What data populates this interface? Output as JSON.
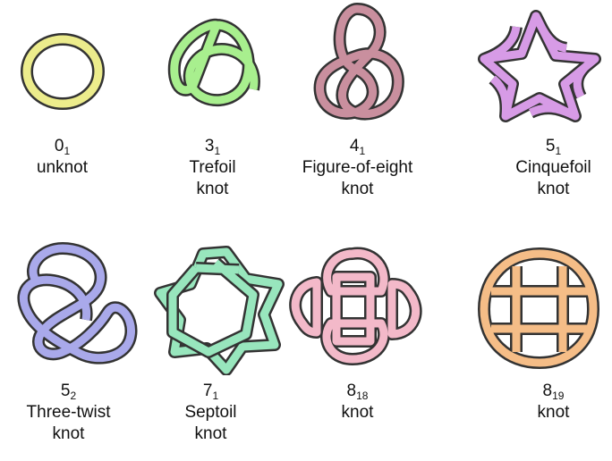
{
  "knots": [
    {
      "number": "0",
      "index": "1",
      "name_lines": [
        "unknot"
      ],
      "color": "#ecec8c"
    },
    {
      "number": "3",
      "index": "1",
      "name_lines": [
        "Trefoil",
        "knot"
      ],
      "color": "#a8ef8e"
    },
    {
      "number": "4",
      "index": "1",
      "name_lines": [
        "Figure-of-eight",
        "knot"
      ],
      "color": "#c98f9e"
    },
    {
      "number": "5",
      "index": "1",
      "name_lines": [
        "Cinquefoil",
        "knot"
      ],
      "color": "#d79be6"
    },
    {
      "number": "5",
      "index": "2",
      "name_lines": [
        "Three-twist",
        "knot"
      ],
      "color": "#a9a9ea"
    },
    {
      "number": "7",
      "index": "1",
      "name_lines": [
        "Septoil",
        "knot"
      ],
      "color": "#98e6bd"
    },
    {
      "number": "8",
      "index": "18",
      "name_lines": [
        "knot"
      ],
      "color": "#f3b9c9"
    },
    {
      "number": "8",
      "index": "19",
      "name_lines": [
        "knot"
      ],
      "color": "#f5bd87"
    }
  ]
}
